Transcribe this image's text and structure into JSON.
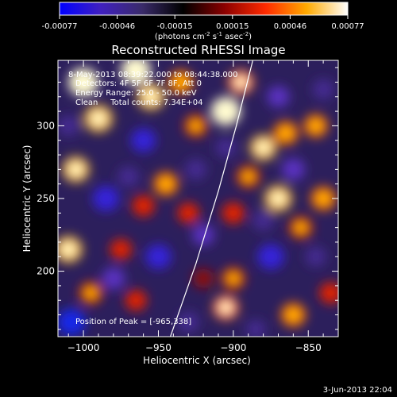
{
  "chart_data": {
    "type": "heatmap",
    "title": "Reconstructed RHESSI Image",
    "colorbar": {
      "ticks": [
        "-0.00077",
        "-0.00046",
        "-0.00015",
        "0.00015",
        "0.00046",
        "0.00077"
      ],
      "unit_parts": [
        "(photons cm",
        "-2",
        " s",
        "-1",
        " asec",
        "-2",
        ")"
      ],
      "colors": [
        "#0000ff",
        "#4020c0",
        "#3a2b6a",
        "#000000",
        "#8a0000",
        "#ff2a00",
        "#ffaa00",
        "#ffffff"
      ]
    },
    "annotations": [
      "8-May-2013 08:39:22.000 to 08:44:38.000",
      "Detectors: 4F 5F 6F 7F 8F, Att 0",
      "Energy Range: 25.0 - 50.0 keV",
      "Clean     Total counts: 7.34E+04"
    ],
    "peak_text": "Position of Peak = [-965,338]",
    "xlabel": "Heliocentric X (arcsec)",
    "ylabel": "Heliocentric Y (arcsec)",
    "xlim": [
      -1017,
      -830
    ],
    "ylim": [
      155,
      345
    ],
    "xticks": [
      -1000,
      -950,
      -900,
      -850
    ],
    "yticks": [
      200,
      250,
      300
    ],
    "limb_x": [
      -942,
      -925,
      -910,
      -898,
      -887
    ],
    "limb_y": [
      155,
      205,
      255,
      300,
      345
    ],
    "blobs": [
      {
        "x": -1000,
        "y": 330,
        "v": 1.0
      },
      {
        "x": -990,
        "y": 305,
        "v": 0.9
      },
      {
        "x": -1005,
        "y": 270,
        "v": 0.8
      },
      {
        "x": -1010,
        "y": 215,
        "v": 0.85
      },
      {
        "x": -995,
        "y": 185,
        "v": 0.6
      },
      {
        "x": -965,
        "y": 338,
        "v": 1.0
      },
      {
        "x": -955,
        "y": 320,
        "v": 0.85
      },
      {
        "x": -935,
        "y": 330,
        "v": 0.7
      },
      {
        "x": -925,
        "y": 300,
        "v": 0.6
      },
      {
        "x": -945,
        "y": 260,
        "v": 0.7
      },
      {
        "x": -960,
        "y": 245,
        "v": 0.55
      },
      {
        "x": -930,
        "y": 240,
        "v": 0.5
      },
      {
        "x": -905,
        "y": 310,
        "v": 1.0
      },
      {
        "x": -895,
        "y": 330,
        "v": 0.75
      },
      {
        "x": -880,
        "y": 285,
        "v": 0.8
      },
      {
        "x": -870,
        "y": 250,
        "v": 0.85
      },
      {
        "x": -865,
        "y": 295,
        "v": 0.7
      },
      {
        "x": -845,
        "y": 300,
        "v": 0.65
      },
      {
        "x": -840,
        "y": 250,
        "v": 0.7
      },
      {
        "x": -855,
        "y": 230,
        "v": 0.6
      },
      {
        "x": -900,
        "y": 240,
        "v": 0.55
      },
      {
        "x": -890,
        "y": 265,
        "v": 0.6
      },
      {
        "x": -965,
        "y": 180,
        "v": 0.5
      },
      {
        "x": -905,
        "y": 175,
        "v": 0.75
      },
      {
        "x": -900,
        "y": 195,
        "v": 0.6
      },
      {
        "x": -860,
        "y": 170,
        "v": 0.7
      },
      {
        "x": -835,
        "y": 185,
        "v": 0.55
      },
      {
        "x": -975,
        "y": 215,
        "v": 0.5
      },
      {
        "x": -920,
        "y": 195,
        "v": 0.45
      },
      {
        "x": -985,
        "y": 250,
        "v": -0.8
      },
      {
        "x": -960,
        "y": 290,
        "v": -0.7
      },
      {
        "x": -980,
        "y": 195,
        "v": -0.6
      },
      {
        "x": -1008,
        "y": 165,
        "v": -0.9
      },
      {
        "x": -950,
        "y": 210,
        "v": -0.75
      },
      {
        "x": -925,
        "y": 270,
        "v": -0.5
      },
      {
        "x": -920,
        "y": 225,
        "v": -0.55
      },
      {
        "x": -905,
        "y": 285,
        "v": -0.45
      },
      {
        "x": -875,
        "y": 210,
        "v": -0.8
      },
      {
        "x": -880,
        "y": 235,
        "v": -0.5
      },
      {
        "x": -860,
        "y": 270,
        "v": -0.6
      },
      {
        "x": -870,
        "y": 320,
        "v": -0.55
      },
      {
        "x": -840,
        "y": 325,
        "v": -0.5
      },
      {
        "x": -845,
        "y": 210,
        "v": -0.45
      },
      {
        "x": -930,
        "y": 165,
        "v": -0.5
      },
      {
        "x": -885,
        "y": 160,
        "v": -0.4
      },
      {
        "x": -1010,
        "y": 300,
        "v": -0.5
      },
      {
        "x": -970,
        "y": 265,
        "v": -0.5
      }
    ]
  },
  "footer": {
    "timestamp": "3-Jun-2013 22:04"
  }
}
